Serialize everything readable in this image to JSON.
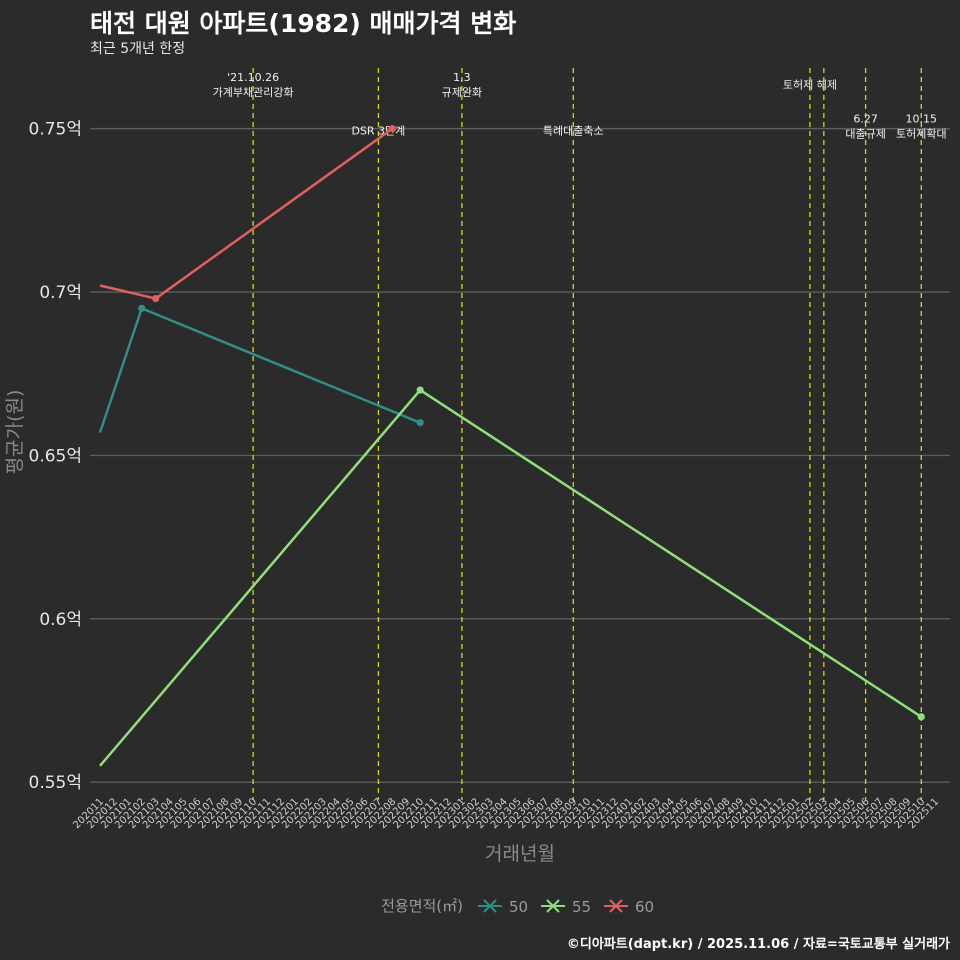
{
  "title": "태전 대원 아파트(1982) 매매가격 변화",
  "subtitle": "최근 5개년 한정",
  "caption": "©디아파트(dapt.kr) / 2025.11.06 / 자료=국토교통부 실거래가",
  "chart_data": {
    "type": "line",
    "title": "태전 대원 아파트(1982) 매매가격 변화",
    "xlabel": "거래년월",
    "ylabel": "평균가(원)",
    "ylim": [
      0.547,
      0.771
    ],
    "yticks": [
      0.55,
      0.6,
      0.65,
      0.7,
      0.75
    ],
    "ytick_labels": [
      "0.55억",
      "0.6억",
      "0.65억",
      "0.7억",
      "0.75억"
    ],
    "categories": [
      "202011",
      "202012",
      "202101",
      "202102",
      "202103",
      "202104",
      "202105",
      "202106",
      "202107",
      "202108",
      "202109",
      "202110",
      "202111",
      "202112",
      "202201",
      "202202",
      "202203",
      "202204",
      "202205",
      "202206",
      "202207",
      "202208",
      "202209",
      "202210",
      "202211",
      "202212",
      "202301",
      "202302",
      "202303",
      "202304",
      "202305",
      "202306",
      "202307",
      "202308",
      "202309",
      "202310",
      "202311",
      "202312",
      "202401",
      "202402",
      "202403",
      "202404",
      "202405",
      "202406",
      "202407",
      "202408",
      "202409",
      "202410",
      "202411",
      "202412",
      "202501",
      "202502",
      "202503",
      "202504",
      "202505",
      "202506",
      "202507",
      "202508",
      "202509",
      "202510",
      "202511"
    ],
    "series": [
      {
        "name": "50",
        "color": "#2f8f88",
        "points": [
          {
            "x": "202011",
            "y": 0.657
          },
          {
            "x": "202102",
            "y": 0.695
          },
          {
            "x": "202210",
            "y": 0.66
          }
        ],
        "markers": [
          "202102",
          "202210"
        ]
      },
      {
        "name": "55",
        "color": "#8fe07a",
        "points": [
          {
            "x": "202011",
            "y": 0.555
          },
          {
            "x": "202210",
            "y": 0.67
          },
          {
            "x": "202510",
            "y": 0.57
          }
        ],
        "markers": [
          "202210",
          "202510"
        ]
      },
      {
        "name": "60",
        "color": "#e06060",
        "points": [
          {
            "x": "202011",
            "y": 0.702
          },
          {
            "x": "202103",
            "y": 0.698
          },
          {
            "x": "202208",
            "y": 0.75
          }
        ],
        "markers": [
          "202103",
          "202208"
        ]
      }
    ],
    "vlines": [
      {
        "x": "202110",
        "label": [
          "'21.10.26",
          "가계부채관리강화"
        ],
        "label_y": 0.7645
      },
      {
        "x": "202207",
        "label": [
          "DSR 3단계"
        ],
        "label_y": 0.7482
      },
      {
        "x": "202301",
        "label": [
          "1.3",
          "규제완화"
        ],
        "label_y": 0.7645
      },
      {
        "x": "202309",
        "label": [
          "특례대출축소"
        ],
        "label_y": 0.7482
      },
      {
        "x": "202502",
        "label": [
          "토허제 해제"
        ],
        "label_y": 0.7623
      },
      {
        "x": "202503",
        "label": [],
        "label_y": 0.7623
      },
      {
        "x": "202506",
        "label": [
          "6.27",
          "대출규제"
        ],
        "label_y": 0.7518
      },
      {
        "x": "202510",
        "label": [
          "10.15",
          "토허제확대"
        ],
        "label_y": 0.7518
      }
    ],
    "legend": {
      "title": "전용면적(㎡)",
      "position": "bottom"
    }
  }
}
